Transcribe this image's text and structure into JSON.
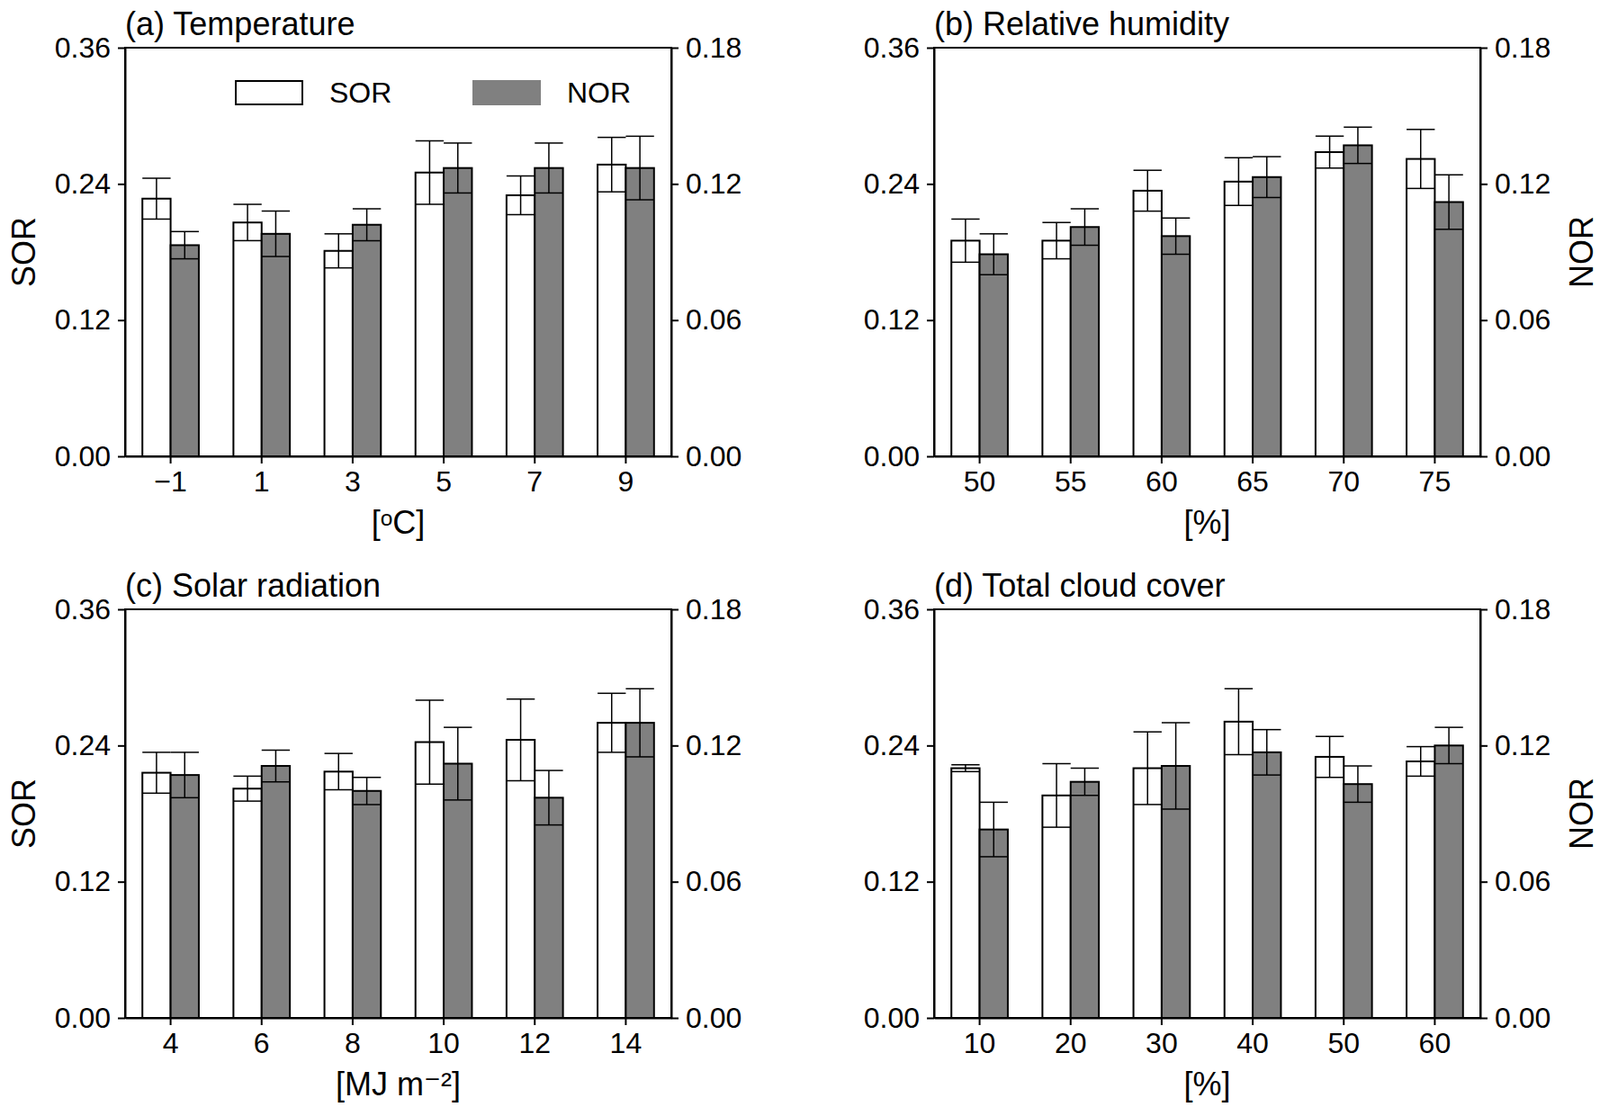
{
  "chart_data": [
    {
      "type": "bar",
      "title": "(a) Temperature",
      "xlabel": "[ᵒC]",
      "ylabel": "SOR",
      "categories": [
        "−1",
        "1",
        "3",
        "5",
        "7",
        "9"
      ],
      "ylim": [
        0,
        0.36
      ],
      "yticks": [
        {
          "value": 0,
          "label": "0.00"
        },
        0.12,
        0.24,
        0.36
      ],
      "y2lim": [
        0,
        0.18
      ],
      "y2ticks": [
        {
          "value": 0,
          "label": "0.00"
        },
        0.06,
        0.12,
        0.18
      ],
      "legend": "top",
      "series": [
        {
          "name": "SOR",
          "color": "#ffffff",
          "values": [
            0.227,
            0.206,
            0.181,
            0.25,
            0.23,
            0.257
          ],
          "errors": [
            0.018,
            0.016,
            0.015,
            0.028,
            0.017,
            0.024
          ]
        },
        {
          "name": "NOR",
          "color": "#808080",
          "axis": "y2",
          "values": [
            0.093,
            0.098,
            0.102,
            0.127,
            0.127,
            0.127
          ],
          "errors": [
            0.006,
            0.01,
            0.007,
            0.011,
            0.011,
            0.014
          ]
        }
      ]
    },
    {
      "type": "bar",
      "title": "(b) Relative humidity",
      "xlabel": "[%]",
      "y2label": "NOR",
      "categories": [
        "50",
        "55",
        "60",
        "65",
        "70",
        "75"
      ],
      "ylim": [
        0,
        0.36
      ],
      "yticks": [
        {
          "value": 0,
          "label": "0.00"
        },
        0.12,
        0.24,
        0.36
      ],
      "y2lim": [
        0,
        0.18
      ],
      "y2ticks": [
        {
          "value": 0,
          "label": "0.00"
        },
        0.06,
        0.12,
        0.18
      ],
      "series": [
        {
          "name": "SOR",
          "color": "#ffffff",
          "values": [
            0.19,
            0.19,
            0.234,
            0.242,
            0.268,
            0.262
          ],
          "errors": [
            0.019,
            0.016,
            0.018,
            0.021,
            0.014,
            0.026
          ]
        },
        {
          "name": "NOR",
          "color": "#808080",
          "axis": "y2",
          "values": [
            0.089,
            0.101,
            0.097,
            0.123,
            0.137,
            0.112
          ],
          "errors": [
            0.009,
            0.008,
            0.008,
            0.009,
            0.008,
            0.012
          ]
        }
      ]
    },
    {
      "type": "bar",
      "title": "(c) Solar radiation",
      "xlabel": "[MJ m⁻²]",
      "ylabel": "SOR",
      "categories": [
        "4",
        "6",
        "8",
        "10",
        "12",
        "14"
      ],
      "ylim": [
        0,
        0.36
      ],
      "yticks": [
        {
          "value": 0,
          "label": "0.00"
        },
        0.12,
        0.24,
        0.36
      ],
      "y2lim": [
        0,
        0.18
      ],
      "y2ticks": [
        {
          "value": 0,
          "label": "0.00"
        },
        0.06,
        0.12,
        0.18
      ],
      "series": [
        {
          "name": "SOR",
          "color": "#ffffff",
          "values": [
            0.216,
            0.202,
            0.217,
            0.243,
            0.245,
            0.26
          ],
          "errors": [
            0.018,
            0.011,
            0.016,
            0.037,
            0.036,
            0.026
          ]
        },
        {
          "name": "NOR",
          "color": "#808080",
          "axis": "y2",
          "values": [
            0.107,
            0.111,
            0.1,
            0.112,
            0.097,
            0.13
          ],
          "errors": [
            0.01,
            0.007,
            0.006,
            0.016,
            0.012,
            0.015
          ]
        }
      ]
    },
    {
      "type": "bar",
      "title": "(d) Total cloud cover",
      "xlabel": "[%]",
      "y2label": "NOR",
      "categories": [
        "10",
        "20",
        "30",
        "40",
        "50",
        "60"
      ],
      "ylim": [
        0,
        0.36
      ],
      "yticks": [
        {
          "value": 0,
          "label": "0.00"
        },
        0.12,
        0.24,
        0.36
      ],
      "y2lim": [
        0,
        0.18
      ],
      "y2ticks": [
        {
          "value": 0,
          "label": "0.00"
        },
        0.06,
        0.12,
        0.18
      ],
      "series": [
        {
          "name": "SOR",
          "color": "#ffffff",
          "values": [
            0.22,
            0.196,
            0.22,
            0.261,
            0.23,
            0.226
          ],
          "errors": [
            0.003,
            0.028,
            0.032,
            0.029,
            0.018,
            0.013
          ]
        },
        {
          "name": "NOR",
          "color": "#808080",
          "axis": "y2",
          "values": [
            0.083,
            0.104,
            0.111,
            0.117,
            0.103,
            0.12
          ],
          "errors": [
            0.012,
            0.006,
            0.019,
            0.01,
            0.008,
            0.008
          ]
        }
      ]
    }
  ]
}
